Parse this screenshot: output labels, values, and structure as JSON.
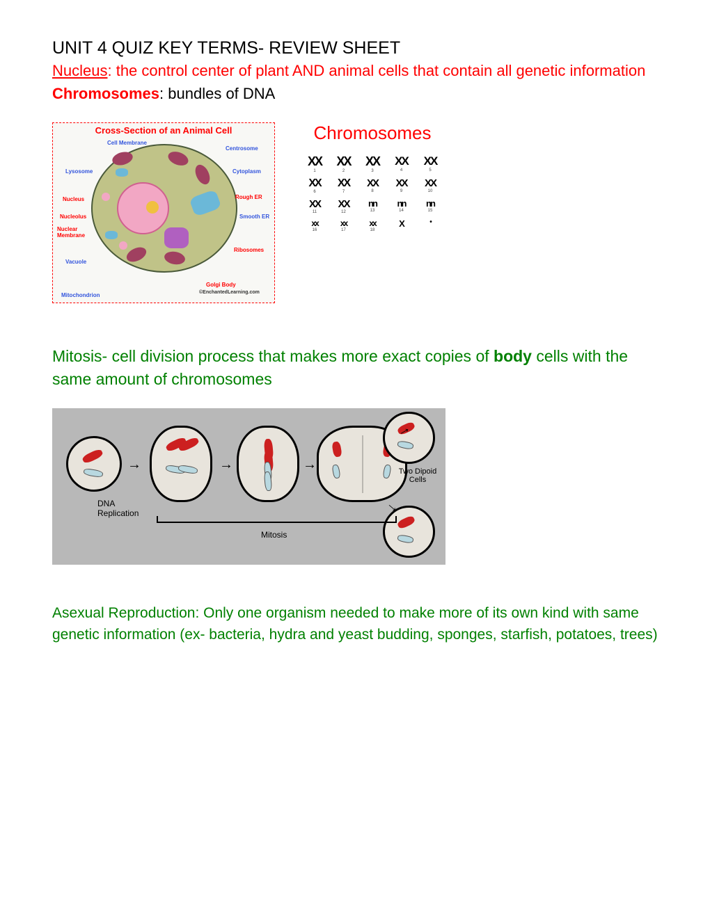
{
  "title": "UNIT 4 QUIZ KEY TERMS- REVIEW SHEET",
  "terms": {
    "nucleus": {
      "label": "Nucleus",
      "definition": ": the control center of plant AND animal cells that contain all genetic information"
    },
    "chromosomes": {
      "label": "Chromosomes",
      "definition": ": bundles of DNA"
    }
  },
  "cell_diagram": {
    "title": "Cross-Section of an Animal Cell",
    "labels": {
      "cell_membrane": "Cell Membrane",
      "centrosome": "Centrosome",
      "lysosome": "Lysosome",
      "cytoplasm": "Cytoplasm",
      "nucleus": "Nucleus",
      "rough_er": "Rough ER",
      "nucleolus": "Nucleolus",
      "smooth_er": "Smooth ER",
      "nuclear_membrane": "Nuclear Membrane",
      "vacuole": "Vacuole",
      "ribosomes": "Ribosomes",
      "mitochondrion": "Mitochondrion",
      "golgi": "Golgi Body",
      "copyright": "©EnchantedLearning.com"
    },
    "colors": {
      "cell_fill": "#c0c388",
      "nucleus_fill": "#f2a7c4",
      "mito_fill": "#a04060",
      "border": "#ff0000"
    }
  },
  "chromosomes_section": {
    "title": "Chromosomes",
    "rows": [
      [
        {
          "g": "XX",
          "n": "1",
          "s": 18
        },
        {
          "g": "XX",
          "n": "2",
          "s": 18
        },
        {
          "g": "XX",
          "n": "3",
          "s": 18
        },
        {
          "g": "XX",
          "n": "4",
          "s": 17
        },
        {
          "g": "XX",
          "n": "5",
          "s": 17
        }
      ],
      [
        {
          "g": "XX",
          "n": "6",
          "s": 16
        },
        {
          "g": "XX",
          "n": "7",
          "s": 16
        },
        {
          "g": "XX",
          "n": "8",
          "s": 15
        },
        {
          "g": "XX",
          "n": "9",
          "s": 15
        },
        {
          "g": "XX",
          "n": "10",
          "s": 15
        }
      ],
      [
        {
          "g": "XX",
          "n": "11",
          "s": 15
        },
        {
          "g": "XX",
          "n": "12",
          "s": 15
        },
        {
          "g": "nn",
          "n": "13",
          "s": 13
        },
        {
          "g": "nn",
          "n": "14",
          "s": 13
        },
        {
          "g": "nn",
          "n": "15",
          "s": 13
        }
      ],
      [
        {
          "g": "xx",
          "n": "16",
          "s": 12
        },
        {
          "g": "xx",
          "n": "17",
          "s": 12
        },
        {
          "g": "xx",
          "n": "18",
          "s": 12
        },
        {
          "g": "X",
          "n": "",
          "s": 13
        },
        {
          "g": "•",
          "n": "",
          "s": 10
        }
      ]
    ]
  },
  "mitosis": {
    "text_prefix": "Mitosis- cell division process that makes more exact copies of ",
    "bold_word": "body",
    "text_suffix": " cells with the same amount of chromosomes"
  },
  "mitosis_diagram": {
    "labels": {
      "dna_rep": "DNA Replication",
      "mitosis": "Mitosis",
      "two_diploid": "Two Dipoid Cells"
    },
    "colors": {
      "background": "#b8b8b8",
      "cell_fill": "#e8e4dc",
      "red_chr": "#cc2020",
      "blue_chr": "#b8d8e0"
    }
  },
  "asexual": {
    "text": "Asexual Reproduction: Only one organism needed to make more of its own kind with same genetic information (ex- bacteria, hydra and yeast budding, sponges, starfish, potatoes, trees)"
  },
  "colors": {
    "red": "#ff0000",
    "green": "#008000",
    "black": "#000000"
  }
}
